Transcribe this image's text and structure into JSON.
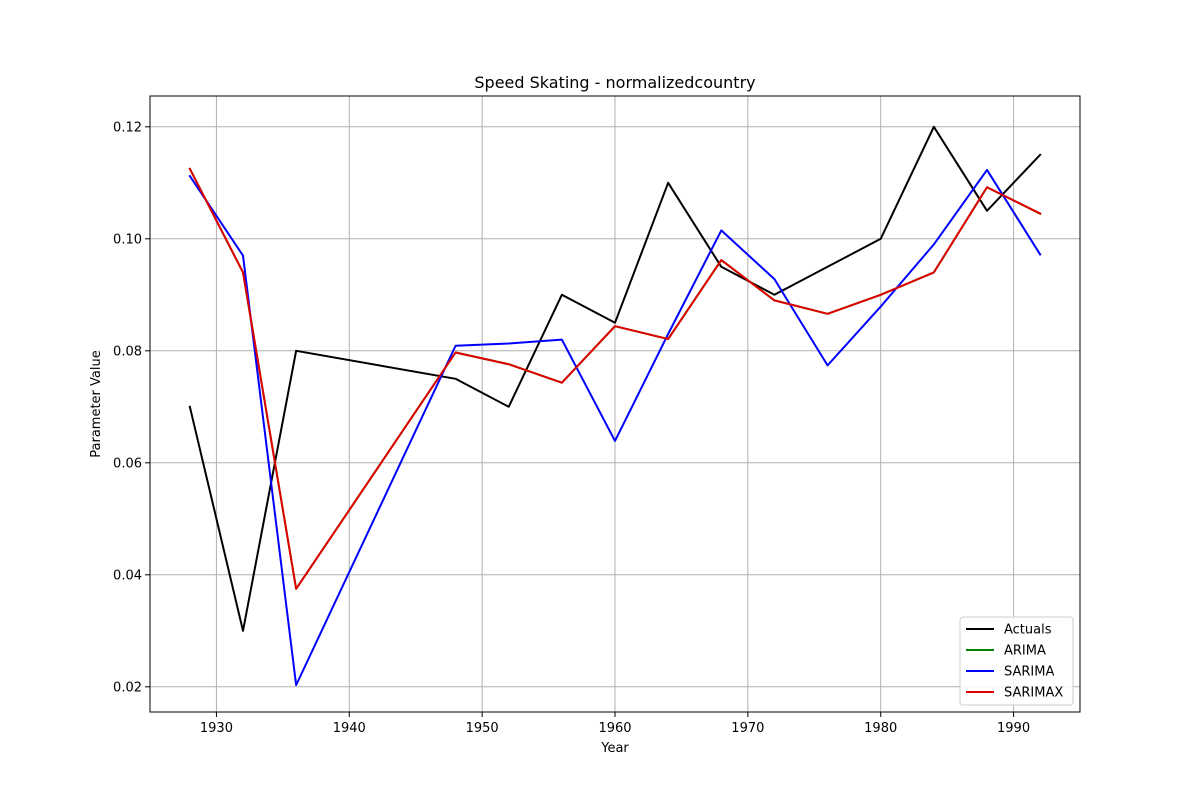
{
  "chart_data": {
    "type": "line",
    "title": "Speed Skating - normalizedcountry",
    "xlabel": "Year",
    "ylabel": "Parameter Value",
    "xlim": [
      1925,
      1995
    ],
    "ylim": [
      0.0155,
      0.1255
    ],
    "xticks": [
      1930,
      1940,
      1950,
      1960,
      1970,
      1980,
      1990
    ],
    "yticks": [
      0.02,
      0.04,
      0.06,
      0.08,
      0.1,
      0.12
    ],
    "xtick_labels": [
      "1930",
      "1940",
      "1950",
      "1960",
      "1970",
      "1980",
      "1990"
    ],
    "ytick_labels": [
      "0.02",
      "0.04",
      "0.06",
      "0.08",
      "0.10",
      "0.12"
    ],
    "grid": true,
    "legend_position": "lower-right",
    "series": [
      {
        "name": "Actuals",
        "color": "#000000",
        "x": [
          1928,
          1932,
          1936,
          1948,
          1952,
          1956,
          1960,
          1964,
          1968,
          1972,
          1976,
          1980,
          1984,
          1988,
          1992
        ],
        "y": [
          0.07,
          0.03,
          0.08,
          0.075,
          0.07,
          0.09,
          0.085,
          0.11,
          0.095,
          0.09,
          0.095,
          0.1,
          0.12,
          0.105,
          0.115
        ]
      },
      {
        "name": "ARIMA",
        "color": "#008000",
        "x": [
          1928,
          1932,
          1936,
          1948,
          1952,
          1956,
          1960,
          1964,
          1968,
          1972,
          1976,
          1980,
          1984,
          1988,
          1992
        ],
        "y": [
          0.1125,
          0.094,
          0.0375,
          0.0797,
          0.0776,
          0.0743,
          0.0844,
          0.0821,
          0.0962,
          0.089,
          0.0866,
          0.09,
          0.094,
          0.1092,
          0.1045
        ]
      },
      {
        "name": "SARIMA",
        "color": "#0000ff",
        "x": [
          1928,
          1932,
          1936,
          1948,
          1952,
          1956,
          1960,
          1964,
          1968,
          1972,
          1976,
          1980,
          1984,
          1988,
          1992
        ],
        "y": [
          0.1112,
          0.097,
          0.0203,
          0.0809,
          0.0813,
          0.082,
          0.0639,
          0.083,
          0.1015,
          0.0928,
          0.0774,
          0.0879,
          0.099,
          0.1123,
          0.0972
        ]
      },
      {
        "name": "SARIMAX",
        "color": "#e00000",
        "x": [
          1928,
          1932,
          1936,
          1948,
          1952,
          1956,
          1960,
          1964,
          1968,
          1972,
          1976,
          1980,
          1984,
          1988,
          1992
        ],
        "y": [
          0.1125,
          0.094,
          0.0375,
          0.0797,
          0.0776,
          0.0743,
          0.0844,
          0.0821,
          0.0962,
          0.089,
          0.0866,
          0.09,
          0.094,
          0.1092,
          0.1045
        ]
      }
    ]
  }
}
